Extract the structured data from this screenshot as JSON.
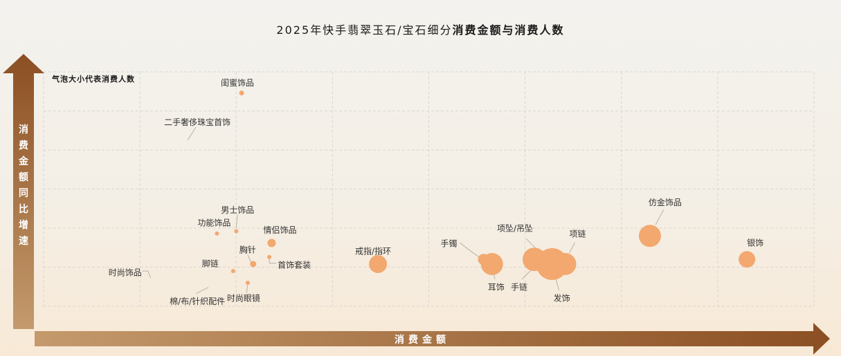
{
  "title": {
    "prefix": "2025年快手翡翠玉石/宝石细分",
    "bold": "消费金额与消费人数"
  },
  "colors": {
    "bubble": "#f2a86f",
    "arrow_dark": "#8b4f23",
    "arrow_light": "#c49a6c"
  },
  "chart_data": {
    "type": "scatter",
    "note": "气泡大小代表消费人数",
    "xlabel": "消费金额",
    "ylabel": "消费金额同比增速",
    "grid": true,
    "points": [
      {
        "name": "闺蜜饰品",
        "x": 25.7,
        "y": 91,
        "r": 3.5
      },
      {
        "name": "二手奢侈珠宝首饰",
        "x": 18.7,
        "y": 70,
        "r": 0
      },
      {
        "name": "男士饰品",
        "x": 25.0,
        "y": 32,
        "r": 3
      },
      {
        "name": "功能饰品",
        "x": 22.5,
        "y": 31,
        "r": 3
      },
      {
        "name": "情侣饰品",
        "x": 29.6,
        "y": 27,
        "r": 6
      },
      {
        "name": "胸针",
        "x": 27.2,
        "y": 18,
        "r": 4.5
      },
      {
        "name": "首饰套装",
        "x": 29.3,
        "y": 21,
        "r": 3
      },
      {
        "name": "时尚饰品",
        "x": 13.9,
        "y": 15,
        "r": 0
      },
      {
        "name": "脚链",
        "x": 24.6,
        "y": 15,
        "r": 3
      },
      {
        "name": "棉/布/针织配件",
        "x": 18.7,
        "y": 11,
        "r": 0
      },
      {
        "name": "时尚眼镜",
        "x": 26.5,
        "y": 10,
        "r": 3
      },
      {
        "name": "戒指/指环",
        "x": 43.4,
        "y": 18,
        "r": 13
      },
      {
        "name": "手镯",
        "x": 57.1,
        "y": 20,
        "r": 8
      },
      {
        "name": "耳饰",
        "x": 58.2,
        "y": 18,
        "r": 16
      },
      {
        "name": "项坠/吊坠",
        "x": 63.7,
        "y": 20,
        "r": 17
      },
      {
        "name": "手链",
        "x": 65.5,
        "y": 18,
        "r": 10
      },
      {
        "name": "发饰",
        "x": 66.0,
        "y": 18,
        "r": 23
      },
      {
        "name": "项链",
        "x": 67.7,
        "y": 18,
        "r": 16
      },
      {
        "name": "仿金饰品",
        "x": 78.7,
        "y": 30,
        "r": 16
      },
      {
        "name": "银饰",
        "x": 91.3,
        "y": 20,
        "r": 12
      }
    ]
  }
}
